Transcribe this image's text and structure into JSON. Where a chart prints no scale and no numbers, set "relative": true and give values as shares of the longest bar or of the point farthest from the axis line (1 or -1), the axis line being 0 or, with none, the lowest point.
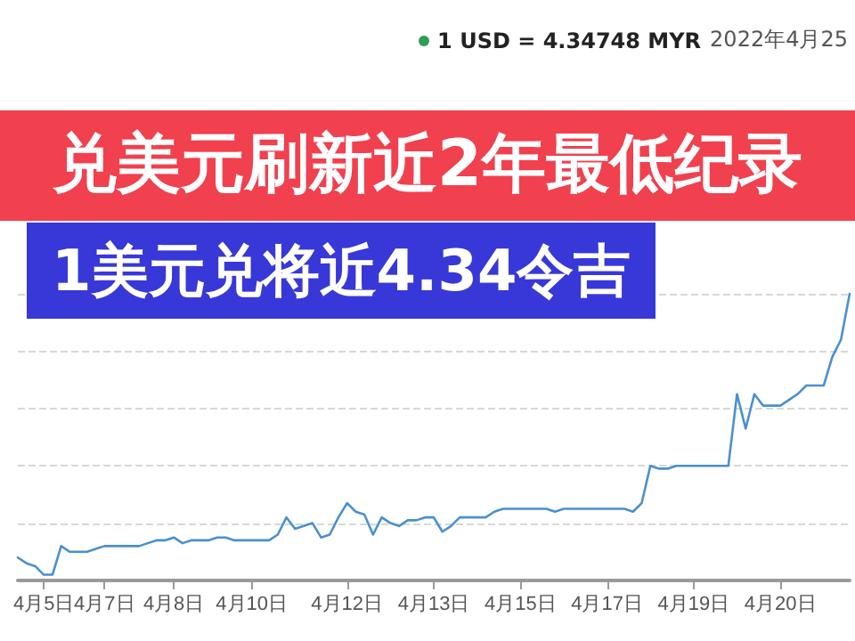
{
  "chart_data": {
    "type": "line",
    "title": "兑美元刷新近2年最低纪录",
    "subtitle": "1美元兑将近4.34令吉",
    "annotations": [
      "1 USD = 4.34748 MYR",
      "2022年4月25"
    ],
    "categories": [
      null,
      null,
      null,
      "4月5日",
      null,
      null,
      null,
      null,
      null,
      null,
      "4月7日",
      null,
      null,
      null,
      null,
      null,
      null,
      null,
      "4月8日",
      null,
      null,
      null,
      null,
      null,
      null,
      null,
      null,
      "4月10日",
      null,
      null,
      null,
      null,
      null,
      null,
      null,
      null,
      null,
      null,
      "4月12日",
      null,
      null,
      null,
      null,
      null,
      null,
      null,
      null,
      null,
      "4月13日",
      null,
      null,
      null,
      null,
      null,
      null,
      null,
      null,
      null,
      "4月15日",
      null,
      null,
      null,
      null,
      null,
      null,
      null,
      null,
      null,
      "4月17日",
      null,
      null,
      null,
      null,
      null,
      null,
      null,
      null,
      null,
      "4月19日",
      null,
      null,
      null,
      null,
      null,
      null,
      null,
      null,
      null,
      "4月20日",
      null,
      null,
      null,
      null,
      null,
      null,
      null,
      null
    ],
    "series": [
      {
        "color": "#4a90d0",
        "values": [
          0.08,
          0.06,
          0.05,
          0.02,
          0.02,
          0.12,
          0.1,
          0.1,
          0.1,
          0.11,
          0.12,
          0.12,
          0.12,
          0.12,
          0.12,
          0.13,
          0.14,
          0.14,
          0.15,
          0.13,
          0.14,
          0.14,
          0.14,
          0.15,
          0.15,
          0.14,
          0.14,
          0.14,
          0.14,
          0.14,
          0.16,
          0.22,
          0.18,
          0.19,
          0.2,
          0.15,
          0.16,
          0.22,
          0.27,
          0.24,
          0.23,
          0.16,
          0.22,
          0.2,
          0.19,
          0.21,
          0.21,
          0.22,
          0.22,
          0.17,
          0.19,
          0.22,
          0.22,
          0.22,
          0.22,
          0.24,
          0.25,
          0.25,
          0.25,
          0.25,
          0.25,
          0.25,
          0.24,
          0.25,
          0.25,
          0.25,
          0.25,
          0.25,
          0.25,
          0.25,
          0.25,
          0.24,
          0.27,
          0.4,
          0.39,
          0.39,
          0.4,
          0.4,
          0.4,
          0.4,
          0.4,
          0.4,
          0.4,
          0.65,
          0.53,
          0.65,
          0.61,
          0.61,
          0.61,
          0.63,
          0.65,
          0.68,
          0.68,
          0.68,
          0.78,
          0.84,
          1.0
        ]
      }
    ],
    "relative": true,
    "grid": "y",
    "marker": "none",
    "line_style": "solid"
  }
}
